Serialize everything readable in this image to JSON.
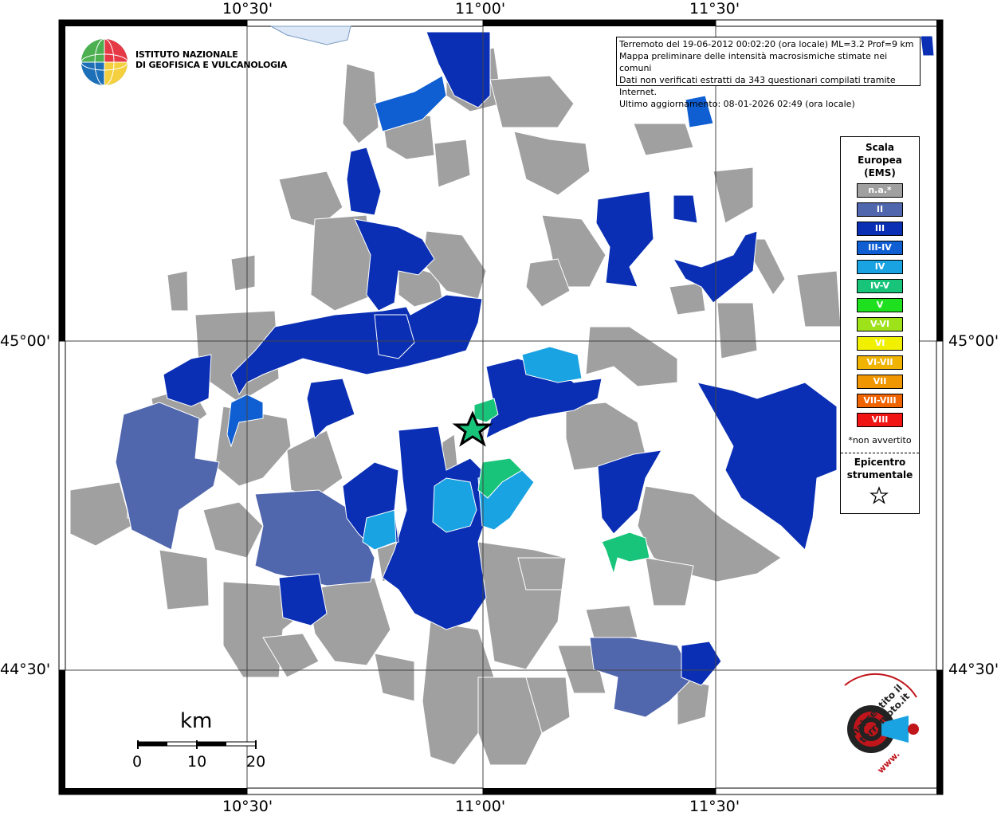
{
  "map": {
    "top_ticks": [
      "10°30'",
      "11°00'",
      "11°30'"
    ],
    "bottom_ticks": [
      "10°30'",
      "11°00'",
      "11°30'"
    ],
    "left_ticks": [
      "45°00'",
      "44°30'"
    ],
    "right_ticks": [
      "45°00'",
      "44°30'"
    ]
  },
  "logo": {
    "line1": "ISTITUTO NAZIONALE",
    "line2": "DI GEOFISICA E VULCANOLOGIA"
  },
  "info": {
    "line1": "Terremoto del 19-06-2012 00:02:20 (ora locale) ML=3.2 Prof=9 km",
    "line2": "Mappa preliminare delle intensità macrosismiche stimate nei comuni",
    "line3": "Dati non verificati estratti da 343 questionari compilati tramite Internet.",
    "line4": "Ultimo aggiornamento: 08-01-2026 02:49 (ora locale)"
  },
  "legend": {
    "title1": "Scala",
    "title2": "Europea",
    "title3": "(EMS)",
    "items": [
      {
        "label": "n.a.*",
        "color": "#a0a0a0"
      },
      {
        "label": "II",
        "color": "#5066ad"
      },
      {
        "label": "III",
        "color": "#0a2fb4"
      },
      {
        "label": "III-IV",
        "color": "#0f5fd3"
      },
      {
        "label": "IV",
        "color": "#1aa3e2"
      },
      {
        "label": "IV-V",
        "color": "#18c47a"
      },
      {
        "label": "V",
        "color": "#1ee01e"
      },
      {
        "label": "V-VI",
        "color": "#9ee21a"
      },
      {
        "label": "VI",
        "color": "#f0f000"
      },
      {
        "label": "VI-VII",
        "color": "#f0b400"
      },
      {
        "label": "VII",
        "color": "#f09600"
      },
      {
        "label": "VII-VIII",
        "color": "#f06400"
      },
      {
        "label": "VIII",
        "color": "#f01414"
      }
    ],
    "note": "*non avvertito",
    "epicenter1": "Epicentro",
    "epicenter2": "strumentale"
  },
  "scale": {
    "unit": "km",
    "labels": [
      "0",
      "10",
      "20"
    ]
  },
  "footer_logo": {
    "text": "hai sentito il terremoto.it",
    "www": "www."
  }
}
